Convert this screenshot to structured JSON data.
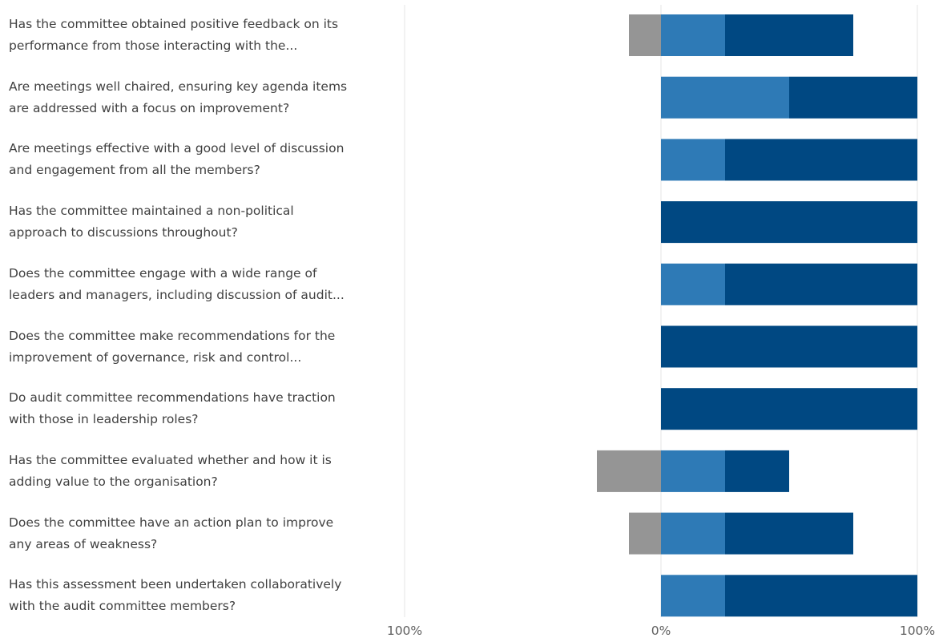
{
  "chart_data": {
    "type": "bar",
    "orientation": "horizontal",
    "stacking": "diverging",
    "categories": [
      [
        "Has the committee obtained positive feedback on its",
        "performance from those interacting with the..."
      ],
      [
        "Are meetings well chaired, ensuring key agenda items",
        "are addressed with a focus on improvement?"
      ],
      [
        "Are meetings effective with a good level of discussion",
        "and engagement from all the members?"
      ],
      [
        "Has the committee maintained a non-political",
        "approach to discussions throughout?"
      ],
      [
        "Does the committee engage with a wide range of",
        "leaders and managers, including discussion of audit..."
      ],
      [
        "Does the committee make recommendations for the",
        "improvement of governance, risk and control..."
      ],
      [
        "Do audit committee recommendations have traction",
        "with those in leadership roles?"
      ],
      [
        "Has the committee evaluated whether and how it is",
        "adding value to the organisation?"
      ],
      [
        "Does the committee have an action plan to improve",
        "any areas of weakness?"
      ],
      [
        "Has this assessment been undertaken collaboratively",
        "with the audit committee members?"
      ]
    ],
    "series": [
      {
        "color": "#959595",
        "values": [
          -12.5,
          0,
          0,
          0,
          0,
          0,
          0,
          -25,
          -12.5,
          0
        ]
      },
      {
        "color": "#2e7ab6",
        "values": [
          25,
          50,
          25,
          0,
          25,
          0,
          0,
          25,
          25,
          25
        ]
      },
      {
        "color": "#004882",
        "values": [
          50,
          50,
          75,
          100,
          75,
          100,
          100,
          25,
          50,
          75
        ]
      }
    ],
    "xlim": [
      -100,
      100
    ],
    "x_ticks": [
      {
        "value": -100,
        "label": "100%"
      },
      {
        "value": 0,
        "label": "0%"
      },
      {
        "value": 100,
        "label": "100%"
      }
    ],
    "grid": true,
    "legend": "none"
  }
}
